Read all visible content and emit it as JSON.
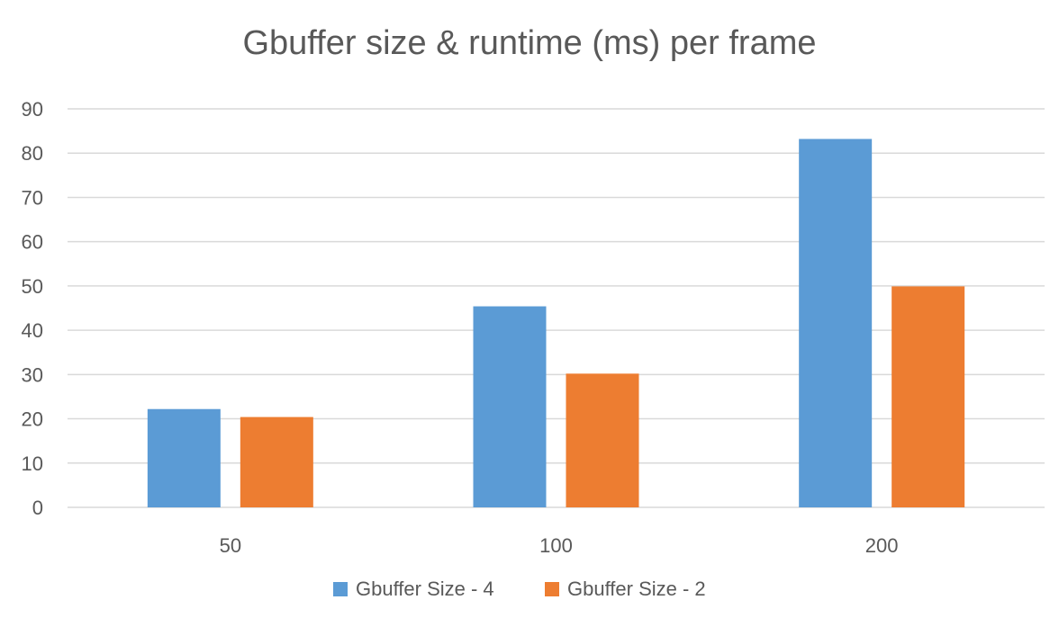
{
  "chart_data": {
    "type": "bar",
    "title": "Gbuffer size & runtime (ms) per frame",
    "xlabel": "",
    "ylabel": "",
    "categories": [
      "50",
      "100",
      "200"
    ],
    "series": [
      {
        "name": "Gbuffer Size - 4",
        "color": "#5b9bd5",
        "values": [
          22.2,
          45.4,
          83.2
        ]
      },
      {
        "name": "Gbuffer Size - 2",
        "color": "#ed7d31",
        "values": [
          20.4,
          30.2,
          49.9
        ]
      }
    ],
    "ylim": [
      0,
      90
    ],
    "yticks": [
      0,
      10,
      20,
      30,
      40,
      50,
      60,
      70,
      80,
      90
    ],
    "grid": true,
    "legend_position": "bottom"
  }
}
